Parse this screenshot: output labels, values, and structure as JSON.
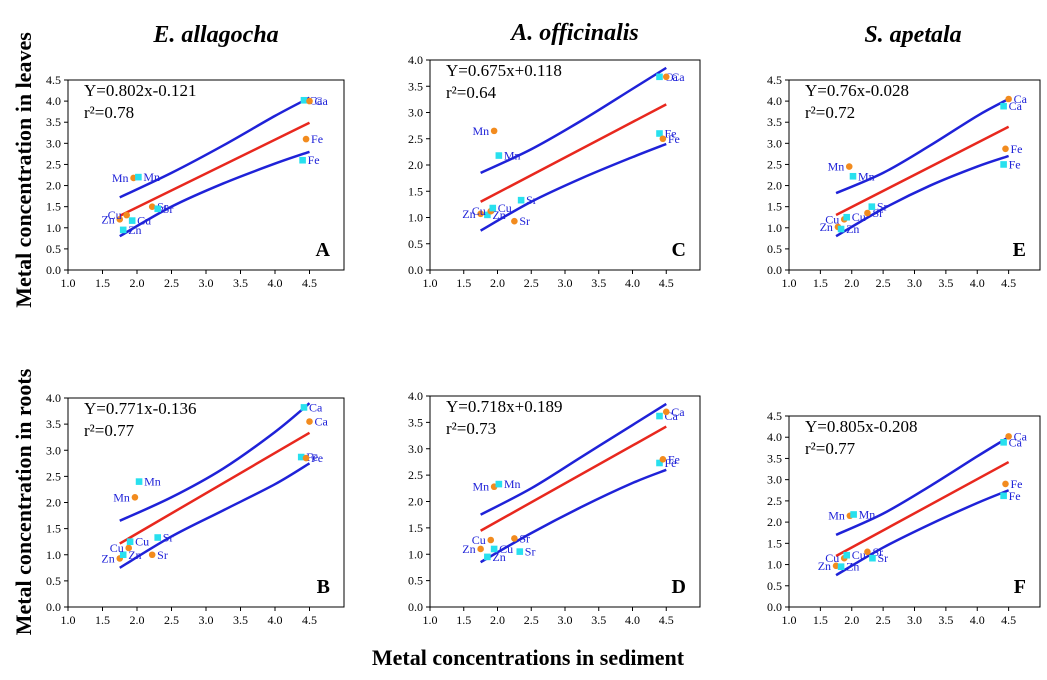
{
  "figure": {
    "ylabel_top": "Metal concentration in leaves",
    "ylabel_bottom": "Metal concentration in roots",
    "xlabel": "Metal concentrations in sediment",
    "column_titles": [
      "E. allagocha",
      "A. officinalis",
      "S. apetala"
    ]
  },
  "colors": {
    "fit_line": "#e8281e",
    "ci_band": "#1f22d8",
    "orange": "#f28b1e",
    "cyan": "#28e0ee",
    "label_text": "#1f22d8"
  },
  "chart_data": [
    {
      "panel": "A",
      "type": "scatter",
      "species": "E. allagocha",
      "tissue": "leaves",
      "equation": "Y=0.802x-0.121",
      "r2": "r²=0.78",
      "xlim": [
        1.0,
        5.0
      ],
      "ylim": [
        0.0,
        4.5
      ],
      "xticks": [
        "1.0",
        "1.5",
        "2.0",
        "2.5",
        "3.0",
        "3.5",
        "4.0",
        "4.5"
      ],
      "yticks": [
        "0.0",
        "0.5",
        "1.0",
        "1.5",
        "2.0",
        "2.5",
        "3.0",
        "3.5",
        "4.0",
        "4.5"
      ],
      "fit": {
        "slope": 0.802,
        "intercept": -0.121,
        "x_range": [
          1.75,
          4.5
        ]
      },
      "ci_upper": [
        [
          1.75,
          1.72
        ],
        [
          2.5,
          2.3
        ],
        [
          3.25,
          2.95
        ],
        [
          4.0,
          3.65
        ],
        [
          4.5,
          4.08
        ]
      ],
      "ci_lower": [
        [
          1.75,
          0.8
        ],
        [
          2.5,
          1.5
        ],
        [
          3.25,
          2.05
        ],
        [
          4.0,
          2.52
        ],
        [
          4.5,
          2.8
        ]
      ],
      "points": [
        {
          "x": 1.75,
          "y": 1.2,
          "label": "Zn",
          "color": "orange"
        },
        {
          "x": 1.8,
          "y": 0.95,
          "label": "Zn",
          "color": "cyan"
        },
        {
          "x": 1.85,
          "y": 1.3,
          "label": "Cu",
          "color": "orange"
        },
        {
          "x": 1.93,
          "y": 1.17,
          "label": "Cu",
          "color": "cyan"
        },
        {
          "x": 1.95,
          "y": 2.18,
          "label": "Mn",
          "color": "orange"
        },
        {
          "x": 2.02,
          "y": 2.2,
          "label": "Mn",
          "color": "cyan"
        },
        {
          "x": 2.22,
          "y": 1.5,
          "label": "Sr",
          "color": "orange"
        },
        {
          "x": 2.3,
          "y": 1.45,
          "label": "Sr",
          "color": "cyan"
        },
        {
          "x": 4.4,
          "y": 2.6,
          "label": "Fe",
          "color": "cyan"
        },
        {
          "x": 4.45,
          "y": 3.1,
          "label": "Fe",
          "color": "orange"
        },
        {
          "x": 4.42,
          "y": 4.02,
          "label": "Ca",
          "color": "cyan"
        },
        {
          "x": 4.5,
          "y": 4.0,
          "label": "Ca",
          "color": "orange"
        }
      ]
    },
    {
      "panel": "C",
      "type": "scatter",
      "species": "A. officinalis",
      "tissue": "leaves",
      "equation": "Y=0.675x+0.118",
      "r2": "r²=0.64",
      "xlim": [
        1.0,
        5.0
      ],
      "ylim": [
        0.0,
        4.0
      ],
      "xticks": [
        "1.0",
        "1.5",
        "2.0",
        "2.5",
        "3.0",
        "3.5",
        "4.0",
        "4.5"
      ],
      "yticks": [
        "0.0",
        "0.5",
        "1.0",
        "1.5",
        "2.0",
        "2.5",
        "3.0",
        "3.5",
        "4.0"
      ],
      "fit": {
        "slope": 0.675,
        "intercept": 0.118,
        "x_range": [
          1.75,
          4.5
        ]
      },
      "ci_upper": [
        [
          1.75,
          1.85
        ],
        [
          2.5,
          2.3
        ],
        [
          3.25,
          2.85
        ],
        [
          4.0,
          3.45
        ],
        [
          4.5,
          3.85
        ]
      ],
      "ci_lower": [
        [
          1.75,
          0.75
        ],
        [
          2.5,
          1.3
        ],
        [
          3.25,
          1.75
        ],
        [
          4.0,
          2.15
        ],
        [
          4.5,
          2.4
        ]
      ],
      "points": [
        {
          "x": 1.75,
          "y": 1.07,
          "label": "Zn",
          "color": "orange"
        },
        {
          "x": 1.85,
          "y": 1.05,
          "label": "Zn",
          "color": "cyan"
        },
        {
          "x": 1.9,
          "y": 1.12,
          "label": "Cu",
          "color": "orange"
        },
        {
          "x": 1.93,
          "y": 1.18,
          "label": "Cu",
          "color": "cyan"
        },
        {
          "x": 1.95,
          "y": 2.65,
          "label": "Mn",
          "color": "orange"
        },
        {
          "x": 2.02,
          "y": 2.18,
          "label": "Mn",
          "color": "cyan"
        },
        {
          "x": 2.25,
          "y": 0.93,
          "label": "Sr",
          "color": "orange"
        },
        {
          "x": 2.35,
          "y": 1.33,
          "label": "Sr",
          "color": "cyan"
        },
        {
          "x": 4.4,
          "y": 2.6,
          "label": "Fe",
          "color": "cyan"
        },
        {
          "x": 4.45,
          "y": 2.5,
          "label": "Fe",
          "color": "orange"
        },
        {
          "x": 4.4,
          "y": 3.68,
          "label": "Ca",
          "color": "cyan"
        },
        {
          "x": 4.5,
          "y": 3.68,
          "label": "Ca",
          "color": "orange"
        }
      ]
    },
    {
      "panel": "E",
      "type": "scatter",
      "species": "S. apetala",
      "tissue": "leaves",
      "equation": "Y=0.76x-0.028",
      "r2": "r²=0.72",
      "xlim": [
        1.0,
        5.0
      ],
      "ylim": [
        0.0,
        4.5
      ],
      "xticks": [
        "1.0",
        "1.5",
        "2.0",
        "2.5",
        "3.0",
        "3.5",
        "4.0",
        "4.5"
      ],
      "yticks": [
        "0.0",
        "0.5",
        "1.0",
        "1.5",
        "2.0",
        "2.5",
        "3.0",
        "3.5",
        "4.0",
        "4.5"
      ],
      "fit": {
        "slope": 0.76,
        "intercept": -0.028,
        "x_range": [
          1.75,
          4.5
        ]
      },
      "ci_upper": [
        [
          1.75,
          1.82
        ],
        [
          2.5,
          2.3
        ],
        [
          3.25,
          2.95
        ],
        [
          4.0,
          3.65
        ],
        [
          4.5,
          4.05
        ]
      ],
      "ci_lower": [
        [
          1.75,
          0.8
        ],
        [
          2.5,
          1.45
        ],
        [
          3.25,
          2.0
        ],
        [
          4.0,
          2.45
        ],
        [
          4.5,
          2.7
        ]
      ],
      "points": [
        {
          "x": 1.78,
          "y": 1.02,
          "label": "Zn",
          "color": "orange"
        },
        {
          "x": 1.83,
          "y": 0.97,
          "label": "Zn",
          "color": "cyan"
        },
        {
          "x": 1.88,
          "y": 1.2,
          "label": "Cu",
          "color": "orange"
        },
        {
          "x": 1.92,
          "y": 1.25,
          "label": "Cu",
          "color": "cyan"
        },
        {
          "x": 1.96,
          "y": 2.45,
          "label": "Mn",
          "color": "orange"
        },
        {
          "x": 2.02,
          "y": 2.22,
          "label": "Mn",
          "color": "cyan"
        },
        {
          "x": 2.25,
          "y": 1.35,
          "label": "Sr",
          "color": "orange"
        },
        {
          "x": 2.32,
          "y": 1.5,
          "label": "Sr",
          "color": "cyan"
        },
        {
          "x": 4.42,
          "y": 2.5,
          "label": "Fe",
          "color": "cyan"
        },
        {
          "x": 4.45,
          "y": 2.87,
          "label": "Fe",
          "color": "orange"
        },
        {
          "x": 4.42,
          "y": 3.88,
          "label": "Ca",
          "color": "cyan"
        },
        {
          "x": 4.5,
          "y": 4.05,
          "label": "Ca",
          "color": "orange"
        }
      ]
    },
    {
      "panel": "B",
      "type": "scatter",
      "species": "E. allagocha",
      "tissue": "roots",
      "equation": "Y=0.771x-0.136",
      "r2": "r²=0.77",
      "xlim": [
        1.0,
        5.0
      ],
      "ylim": [
        0.0,
        4.0
      ],
      "xticks": [
        "1.0",
        "1.5",
        "2.0",
        "2.5",
        "3.0",
        "3.5",
        "4.0",
        "4.5"
      ],
      "yticks": [
        "0.0",
        "0.5",
        "1.0",
        "1.5",
        "2.0",
        "2.5",
        "3.0",
        "3.5",
        "4.0"
      ],
      "fit": {
        "slope": 0.771,
        "intercept": -0.136,
        "x_range": [
          1.75,
          4.5
        ]
      },
      "ci_upper": [
        [
          1.75,
          1.65
        ],
        [
          2.5,
          2.1
        ],
        [
          3.25,
          2.65
        ],
        [
          4.0,
          3.35
        ],
        [
          4.5,
          3.9
        ]
      ],
      "ci_lower": [
        [
          1.75,
          0.75
        ],
        [
          2.5,
          1.35
        ],
        [
          3.25,
          1.85
        ],
        [
          4.0,
          2.35
        ],
        [
          4.5,
          2.75
        ]
      ],
      "points": [
        {
          "x": 1.75,
          "y": 0.93,
          "label": "Zn",
          "color": "orange"
        },
        {
          "x": 1.8,
          "y": 1.0,
          "label": "Zn",
          "color": "cyan"
        },
        {
          "x": 1.88,
          "y": 1.13,
          "label": "Cu",
          "color": "orange"
        },
        {
          "x": 1.9,
          "y": 1.25,
          "label": "Cu",
          "color": "cyan"
        },
        {
          "x": 1.97,
          "y": 2.1,
          "label": "Mn",
          "color": "orange"
        },
        {
          "x": 2.03,
          "y": 2.4,
          "label": "Mn",
          "color": "cyan"
        },
        {
          "x": 2.22,
          "y": 1.0,
          "label": "Sr",
          "color": "orange"
        },
        {
          "x": 2.3,
          "y": 1.33,
          "label": "Sr",
          "color": "cyan"
        },
        {
          "x": 4.38,
          "y": 2.87,
          "label": "Fe",
          "color": "cyan"
        },
        {
          "x": 4.45,
          "y": 2.85,
          "label": "Fe",
          "color": "orange"
        },
        {
          "x": 4.42,
          "y": 3.82,
          "label": "Ca",
          "color": "cyan"
        },
        {
          "x": 4.5,
          "y": 3.55,
          "label": "Ca",
          "color": "orange"
        }
      ]
    },
    {
      "panel": "D",
      "type": "scatter",
      "species": "A. officinalis",
      "tissue": "roots",
      "equation": "Y=0.718x+0.189",
      "r2": "r²=0.73",
      "xlim": [
        1.0,
        5.0
      ],
      "ylim": [
        0.0,
        4.0
      ],
      "xticks": [
        "1.0",
        "1.5",
        "2.0",
        "2.5",
        "3.0",
        "3.5",
        "4.0",
        "4.5"
      ],
      "yticks": [
        "0.0",
        "0.5",
        "1.0",
        "1.5",
        "2.0",
        "2.5",
        "3.0",
        "3.5",
        "4.0"
      ],
      "fit": {
        "slope": 0.718,
        "intercept": 0.189,
        "x_range": [
          1.75,
          4.5
        ]
      },
      "ci_upper": [
        [
          1.75,
          1.75
        ],
        [
          2.5,
          2.25
        ],
        [
          3.25,
          2.85
        ],
        [
          4.0,
          3.45
        ],
        [
          4.5,
          3.85
        ]
      ],
      "ci_lower": [
        [
          1.75,
          0.85
        ],
        [
          2.5,
          1.4
        ],
        [
          3.25,
          1.9
        ],
        [
          4.0,
          2.35
        ],
        [
          4.5,
          2.6
        ]
      ],
      "points": [
        {
          "x": 1.75,
          "y": 1.1,
          "label": "Zn",
          "color": "orange"
        },
        {
          "x": 1.85,
          "y": 0.95,
          "label": "Zn",
          "color": "cyan"
        },
        {
          "x": 1.9,
          "y": 1.27,
          "label": "Cu",
          "color": "orange"
        },
        {
          "x": 1.95,
          "y": 1.1,
          "label": "Cu",
          "color": "cyan"
        },
        {
          "x": 1.95,
          "y": 2.28,
          "label": "Mn",
          "color": "orange"
        },
        {
          "x": 2.02,
          "y": 2.33,
          "label": "Mn",
          "color": "cyan"
        },
        {
          "x": 2.25,
          "y": 1.3,
          "label": "Sr",
          "color": "orange"
        },
        {
          "x": 2.33,
          "y": 1.05,
          "label": "Sr",
          "color": "cyan"
        },
        {
          "x": 4.4,
          "y": 2.73,
          "label": "Fe",
          "color": "cyan"
        },
        {
          "x": 4.45,
          "y": 2.8,
          "label": "Fe",
          "color": "orange"
        },
        {
          "x": 4.4,
          "y": 3.62,
          "label": "Ca",
          "color": "cyan"
        },
        {
          "x": 4.5,
          "y": 3.7,
          "label": "Ca",
          "color": "orange"
        }
      ]
    },
    {
      "panel": "F",
      "type": "scatter",
      "species": "S. apetala",
      "tissue": "roots",
      "equation": "Y=0.805x-0.208",
      "r2": "r²=0.77",
      "xlim": [
        1.0,
        5.0
      ],
      "ylim": [
        0.0,
        4.5
      ],
      "xticks": [
        "1.0",
        "1.5",
        "2.0",
        "2.5",
        "3.0",
        "3.5",
        "4.0",
        "4.5"
      ],
      "yticks": [
        "0.0",
        "0.5",
        "1.0",
        "1.5",
        "2.0",
        "2.5",
        "3.0",
        "3.5",
        "4.0",
        "4.5"
      ],
      "fit": {
        "slope": 0.805,
        "intercept": -0.208,
        "x_range": [
          1.75,
          4.5
        ]
      },
      "ci_upper": [
        [
          1.75,
          1.7
        ],
        [
          2.5,
          2.2
        ],
        [
          3.25,
          2.85
        ],
        [
          4.0,
          3.55
        ],
        [
          4.5,
          4.0
        ]
      ],
      "ci_lower": [
        [
          1.75,
          0.75
        ],
        [
          2.5,
          1.4
        ],
        [
          3.25,
          1.95
        ],
        [
          4.0,
          2.45
        ],
        [
          4.5,
          2.75
        ]
      ],
      "points": [
        {
          "x": 1.75,
          "y": 0.97,
          "label": "Zn",
          "color": "orange"
        },
        {
          "x": 1.83,
          "y": 0.95,
          "label": "Zn",
          "color": "cyan"
        },
        {
          "x": 1.88,
          "y": 1.15,
          "label": "Cu",
          "color": "orange"
        },
        {
          "x": 1.92,
          "y": 1.22,
          "label": "Cu",
          "color": "cyan"
        },
        {
          "x": 1.97,
          "y": 2.15,
          "label": "Mn",
          "color": "orange"
        },
        {
          "x": 2.03,
          "y": 2.18,
          "label": "Mn",
          "color": "cyan"
        },
        {
          "x": 2.25,
          "y": 1.3,
          "label": "Sr",
          "color": "orange"
        },
        {
          "x": 2.33,
          "y": 1.15,
          "label": "Sr",
          "color": "cyan"
        },
        {
          "x": 4.42,
          "y": 2.62,
          "label": "Fe",
          "color": "cyan"
        },
        {
          "x": 4.45,
          "y": 2.9,
          "label": "Fe",
          "color": "orange"
        },
        {
          "x": 4.42,
          "y": 3.88,
          "label": "Ca",
          "color": "cyan"
        },
        {
          "x": 4.5,
          "y": 4.02,
          "label": "Ca",
          "color": "orange"
        }
      ]
    }
  ]
}
